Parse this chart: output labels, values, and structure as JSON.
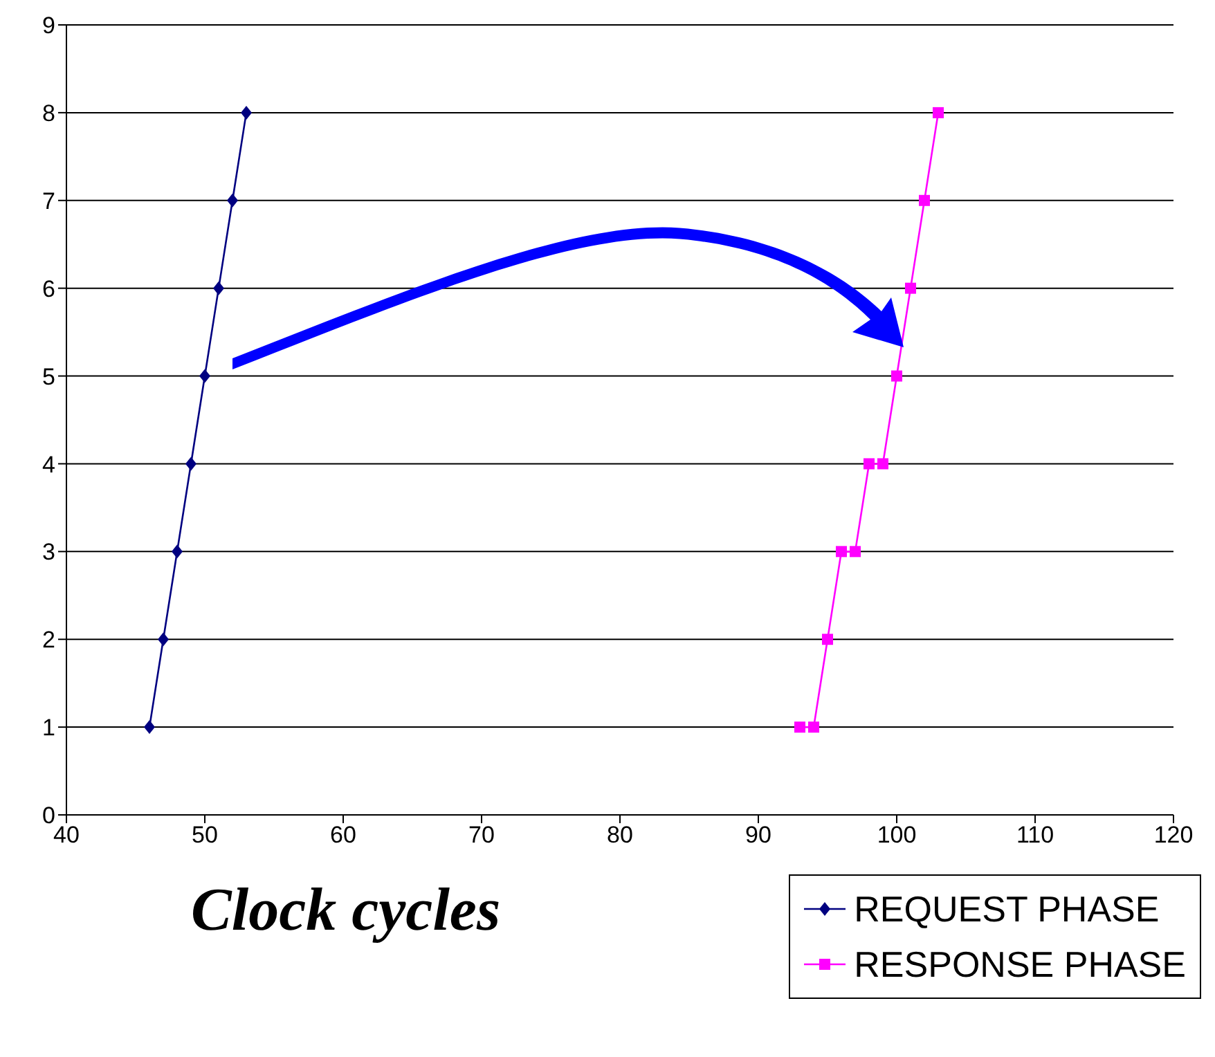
{
  "chart_data": {
    "type": "line",
    "xlabel": "Clock cycles",
    "xlim": [
      40,
      120
    ],
    "xticks": [
      40,
      50,
      60,
      70,
      80,
      90,
      100,
      110,
      120
    ],
    "ylim": [
      0,
      9
    ],
    "yticks": [
      0,
      1,
      2,
      3,
      4,
      5,
      6,
      7,
      8,
      9
    ],
    "grid": "y",
    "legend": "bottom right",
    "line_style": "solid",
    "series": [
      {
        "name": "REQUEST PHASE",
        "color": "#000080",
        "marker": "diamond",
        "x": [
          46,
          47,
          48,
          49,
          50,
          51,
          52,
          53
        ],
        "values": [
          1,
          2,
          3,
          4,
          5,
          6,
          7,
          8
        ]
      },
      {
        "name": "RESPONSE PHASE",
        "color": "#ff00ff",
        "marker": "square",
        "x": [
          93,
          94,
          95,
          96,
          97,
          98,
          99,
          100,
          101,
          102,
          103
        ],
        "values": [
          1,
          1,
          2,
          3,
          3,
          4,
          4,
          5,
          6,
          7,
          8
        ]
      }
    ]
  }
}
